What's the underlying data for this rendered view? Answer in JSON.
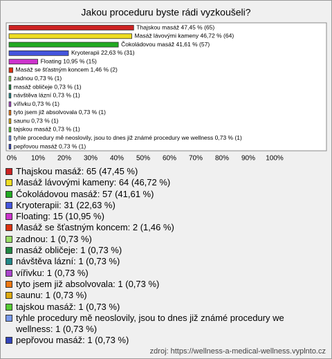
{
  "chart_data": {
    "type": "bar",
    "orientation": "horizontal",
    "title": "Jakou proceduru byste rádi vyzkoušeli?",
    "categories": [
      "Thajskou masáž",
      "Masáž lávovými kameny",
      "Čokoládovou masáž",
      "Kryoterapii",
      "Floating",
      "Masáž se šťastným koncem",
      "zadnou",
      "masáž obličeje",
      "návštěva lázní",
      "vířivku",
      "tyto jsem již absolvovala",
      "saunu",
      "tajskou masáž",
      "tyhle procedury mě neoslovily, jsou to dnes již známé procedury we wellness",
      "pepřovou masáž"
    ],
    "values": [
      47.45,
      46.72,
      41.61,
      22.63,
      10.95,
      1.46,
      0.73,
      0.73,
      0.73,
      0.73,
      0.73,
      0.73,
      0.73,
      0.73,
      0.73
    ],
    "value_labels": [
      "Thajskou masáž 47,45 % (65)",
      "Masáž lávovými kameny 46,72 % (64)",
      "Čokoládovou masáž 41,61 % (57)",
      "Kryoterapii 22,63 % (31)",
      "Floating 10,95 % (15)",
      "Masáž se šťastným koncem 1,46 % (2)",
      "zadnou 0,73 % (1)",
      "masáž obličeje 0,73 % (1)",
      "návštěva lázní 0,73 % (1)",
      "vířivku 0,73 % (1)",
      "tyto jsem již absolvovala 0,73 % (1)",
      "saunu 0,73 % (1)",
      "tajskou masáž 0,73 % (1)",
      "tyhle procedury mě neoslovily, jsou to dnes již známé procedury we wellness 0,73 % (1)",
      "pepřovou masáž 0,73 % (1)"
    ],
    "legend_labels": [
      "Thajskou masáž: 65 (47,45 %)",
      "Masáž lávovými kameny: 64 (46,72 %)",
      "Čokoládovou masáž: 57 (41,61 %)",
      "Kryoterapii: 31 (22,63 %)",
      "Floating: 15 (10,95 %)",
      "Masáž se šťastným koncem: 2 (1,46 %)",
      "zadnou: 1 (0,73 %)",
      "masáž obličeje: 1 (0,73 %)",
      "návštěva lázní: 1 (0,73 %)",
      "vířivku: 1 (0,73 %)",
      "tyto jsem již absolvovala: 1 (0,73 %)",
      "saunu: 1 (0,73 %)",
      "tajskou masáž: 1 (0,73 %)",
      "tyhle procedury mě neoslovily, jsou to dnes již známé procedury we wellness: 1 (0,73 %)",
      "pepřovou masáž: 1 (0,73 %)"
    ],
    "colors": [
      "#cc2222",
      "#eedd22",
      "#22aa22",
      "#4455dd",
      "#cc33cc",
      "#dd3311",
      "#99dd66",
      "#228844",
      "#228888",
      "#aa44cc",
      "#ee7711",
      "#ddaa11",
      "#55cc33",
      "#7799ee",
      "#3344bb"
    ],
    "xlim": [
      0,
      100
    ],
    "xticks": [
      {
        "value": 0,
        "label": "0%"
      },
      {
        "value": 10,
        "label": "10%"
      },
      {
        "value": 20,
        "label": "20%"
      },
      {
        "value": 30,
        "label": "30%"
      },
      {
        "value": 40,
        "label": "40%"
      },
      {
        "value": 50,
        "label": "50%"
      },
      {
        "value": 60,
        "label": "60%"
      },
      {
        "value": 70,
        "label": "70%"
      },
      {
        "value": 80,
        "label": "80%"
      },
      {
        "value": 90,
        "label": "90%"
      },
      {
        "value": 100,
        "label": "100%"
      }
    ],
    "source": "zdroj: https://wellness-a-medical-wellness.vyplnto.cz"
  }
}
